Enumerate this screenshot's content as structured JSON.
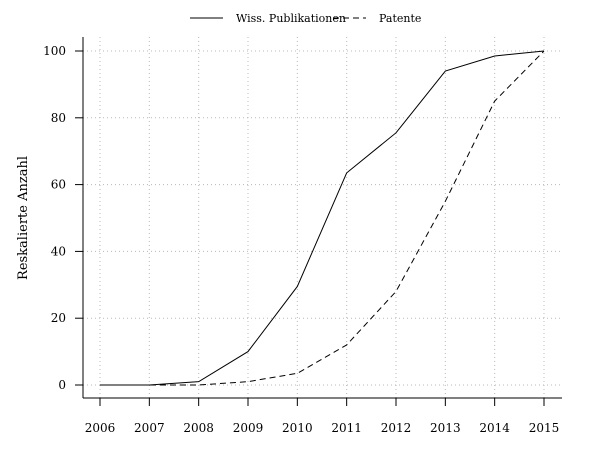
{
  "chart_data": {
    "type": "line",
    "ylabel": "Reskalierte Anzahl",
    "xlabel": "",
    "title": "",
    "x": [
      2006,
      2007,
      2008,
      2009,
      2010,
      2011,
      2012,
      2013,
      2014,
      2015
    ],
    "xticks": [
      "2006",
      "2007",
      "2008",
      "2009",
      "2010",
      "2011",
      "2012",
      "2013",
      "2014",
      "2015"
    ],
    "yticks": [
      0,
      20,
      40,
      60,
      80,
      100
    ],
    "xlim": [
      2006,
      2015
    ],
    "ylim": [
      0,
      100
    ],
    "grid": true,
    "legend_position": "top-center",
    "series": [
      {
        "name": "Wiss. Publikationen",
        "style": "solid",
        "color": "#000000",
        "values": [
          0,
          0,
          1,
          10,
          29.5,
          63.5,
          75.5,
          94,
          98.5,
          100
        ]
      },
      {
        "name": "Patente",
        "style": "dashed",
        "color": "#000000",
        "values": [
          0,
          0,
          0,
          1,
          3.5,
          12,
          28,
          55,
          85,
          100
        ]
      }
    ]
  }
}
